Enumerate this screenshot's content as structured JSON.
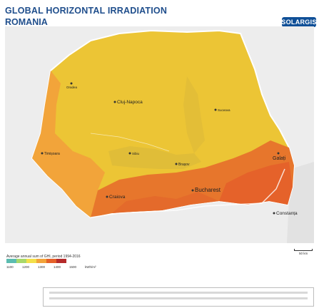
{
  "title": "GLOBAL HORIZONTAL IRRADIATION",
  "subtitle": "ROMANIA",
  "logo": "SOLARGIS",
  "colors": {
    "background_map": "#efefef",
    "zone_low": "#e8c832",
    "zone_mid": "#f2a43a",
    "zone_high": "#e7762c",
    "zone_highest": "#e5622a",
    "border": "#ffffff",
    "brand": "#1f4e8c"
  },
  "cities": [
    {
      "name": "Oradea"
    },
    {
      "name": "Cluj-Napoca"
    },
    {
      "name": "Suceava"
    },
    {
      "name": "Timișoara"
    },
    {
      "name": "Sibiu"
    },
    {
      "name": "Brașov"
    },
    {
      "name": "Galați"
    },
    {
      "name": "Craiova"
    },
    {
      "name": "Bucharest"
    },
    {
      "name": "Constanța"
    }
  ],
  "legend": {
    "title": "Average annual sum of GHI, period 1994-2016",
    "colors": [
      "#5bbcb0",
      "#a8d86a",
      "#f3e04a",
      "#f2a43a",
      "#e5622a",
      "#b52b2b"
    ],
    "ticks": [
      "1100",
      "1200",
      "1300",
      "1400",
      "1500"
    ],
    "unit": "kWh/m²"
  },
  "scale": "50 km"
}
